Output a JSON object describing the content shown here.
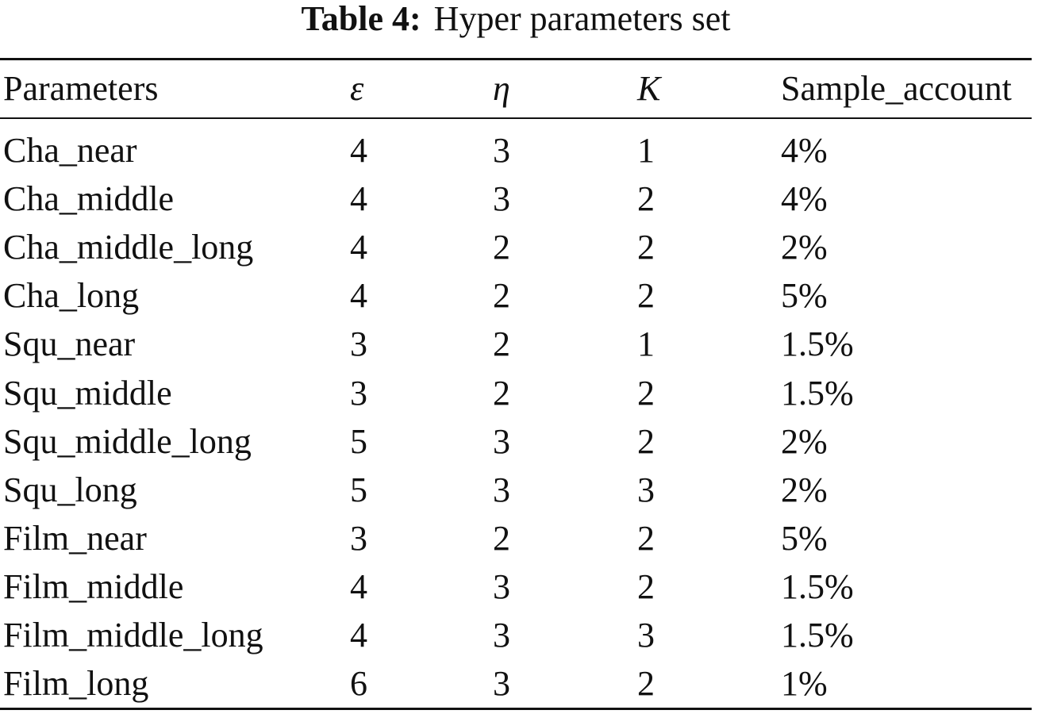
{
  "caption": {
    "label": "Table 4:",
    "text": "Hyper parameters set"
  },
  "table": {
    "headers": [
      "Parameters",
      "ε",
      "η",
      "K",
      "Sample_account"
    ],
    "rows": [
      [
        "Cha_near",
        "4",
        "3",
        "1",
        "4%"
      ],
      [
        "Cha_middle",
        "4",
        "3",
        "2",
        "4%"
      ],
      [
        "Cha_middle_long",
        "4",
        "2",
        "2",
        "2%"
      ],
      [
        "Cha_long",
        "4",
        "2",
        "2",
        "5%"
      ],
      [
        "Squ_near",
        "3",
        "2",
        "1",
        "1.5%"
      ],
      [
        "Squ_middle",
        "3",
        "2",
        "2",
        "1.5%"
      ],
      [
        "Squ_middle_long",
        "5",
        "3",
        "2",
        "2%"
      ],
      [
        "Squ_long",
        "5",
        "3",
        "3",
        "2%"
      ],
      [
        "Film_near",
        "3",
        "2",
        "2",
        "5%"
      ],
      [
        "Film_middle",
        "4",
        "3",
        "2",
        "1.5%"
      ],
      [
        "Film_middle_long",
        "4",
        "3",
        "3",
        "1.5%"
      ],
      [
        "Film_long",
        "6",
        "3",
        "2",
        "1%"
      ]
    ]
  }
}
